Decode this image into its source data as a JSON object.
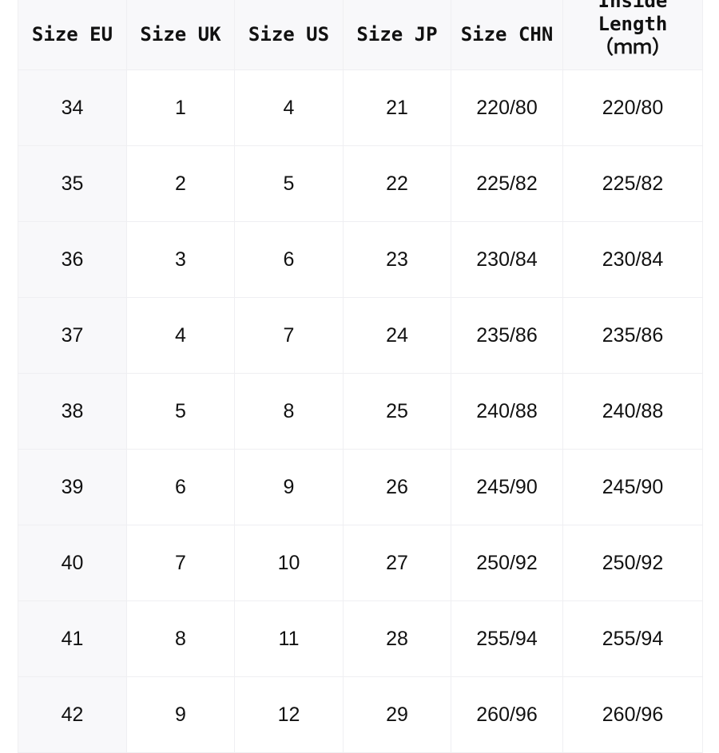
{
  "headers": [
    "Size EU",
    "Size UK",
    "Size US",
    "Size JP",
    "Size CHN",
    "Inside Length",
    "（ｍｍ）"
  ],
  "rows": [
    [
      "34",
      "1",
      "4",
      "21",
      "220/80",
      "220/80"
    ],
    [
      "35",
      "2",
      "5",
      "22",
      "225/82",
      "225/82"
    ],
    [
      "36",
      "3",
      "6",
      "23",
      "230/84",
      "230/84"
    ],
    [
      "37",
      "4",
      "7",
      "24",
      "235/86",
      "235/86"
    ],
    [
      "38",
      "5",
      "8",
      "25",
      "240/88",
      "240/88"
    ],
    [
      "39",
      "6",
      "9",
      "26",
      "245/90",
      "245/90"
    ],
    [
      "40",
      "7",
      "10",
      "27",
      "250/92",
      "250/92"
    ],
    [
      "41",
      "8",
      "11",
      "28",
      "255/94",
      "255/94"
    ],
    [
      "42",
      "9",
      "12",
      "29",
      "260/96",
      "260/96"
    ]
  ]
}
